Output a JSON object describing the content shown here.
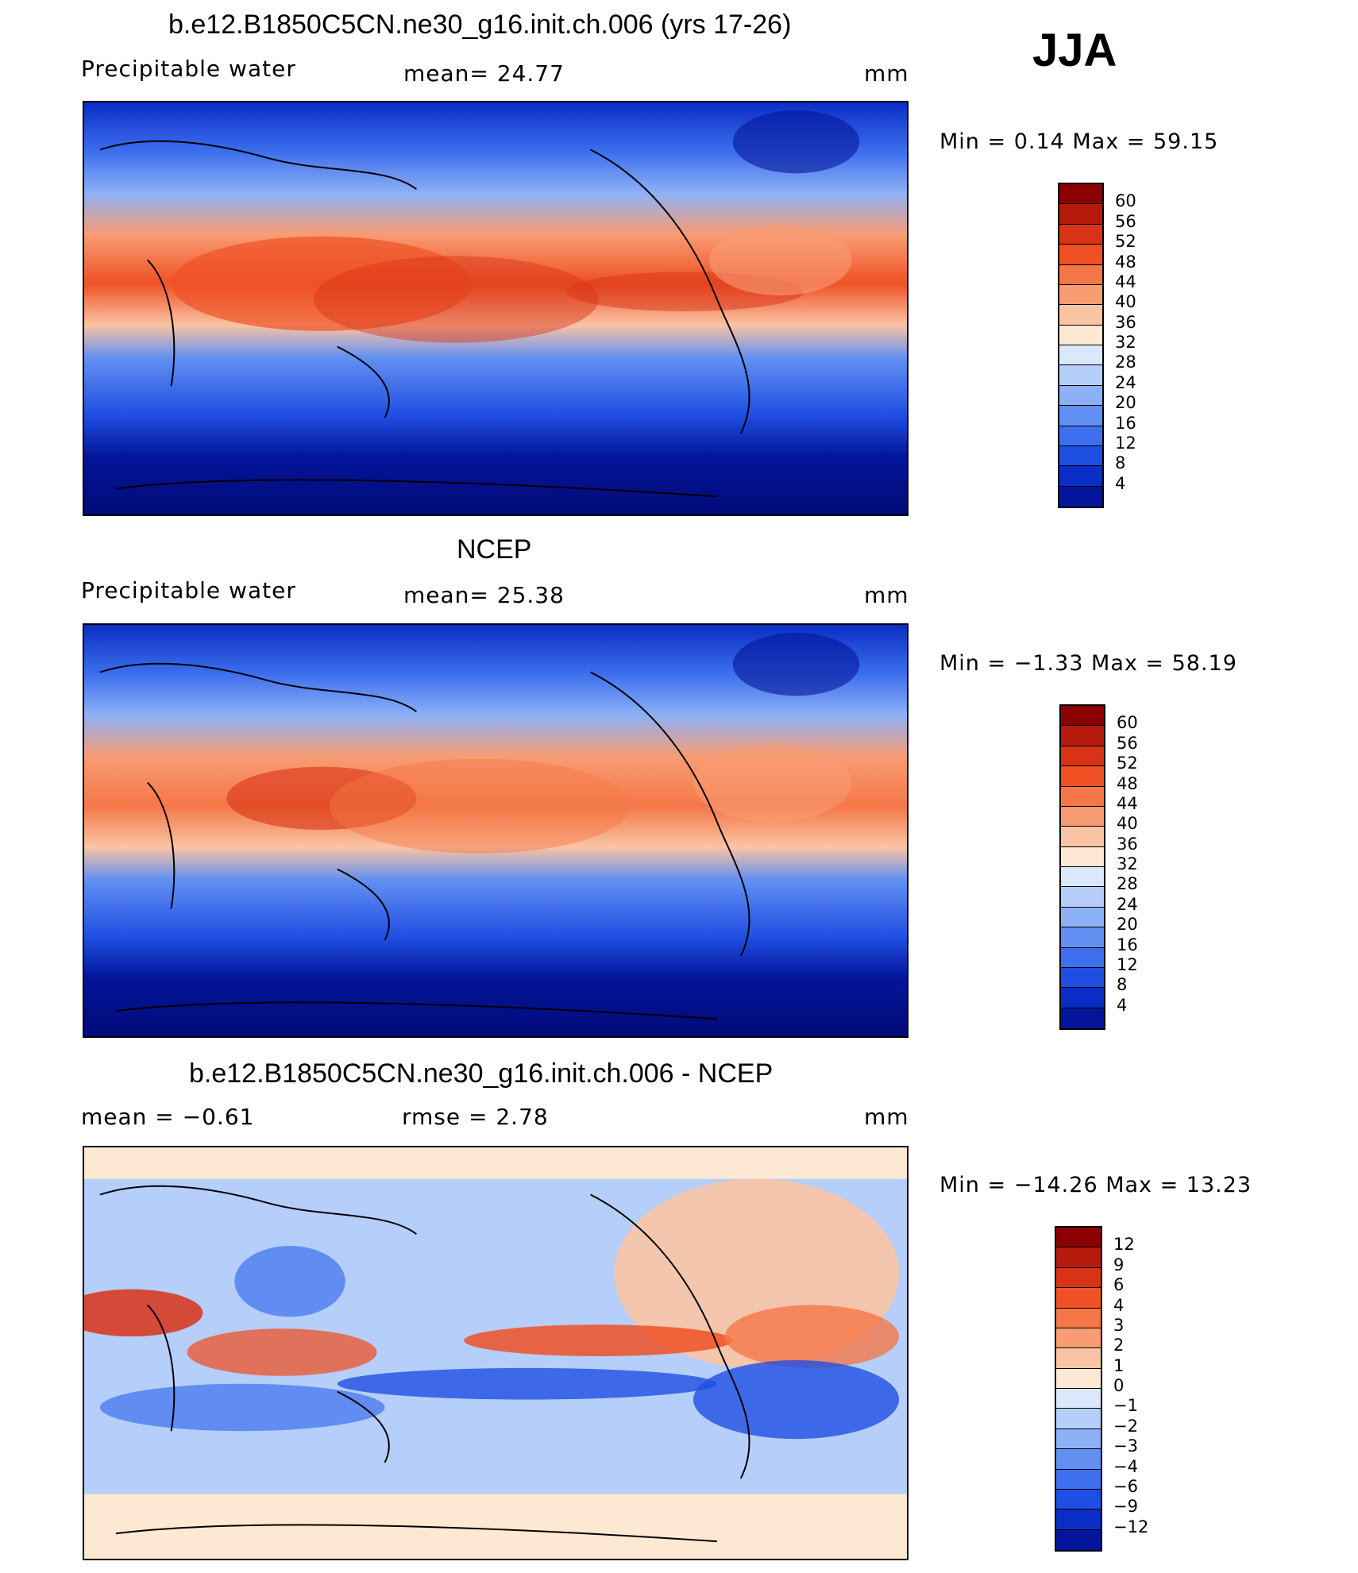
{
  "season": "JJA",
  "panels": [
    {
      "id": "model",
      "title": "b.e12.B1850C5CN.ne30_g16.init.ch.006 (yrs 17-26)",
      "left_label": "Precipitable  water",
      "center_label": "mean=   24.77",
      "units": "mm",
      "minmax": "Min  =     0.14  Max  =    59.15",
      "colorbar": {
        "colors": [
          "#8b0000",
          "#b51a0d",
          "#d83316",
          "#ef5125",
          "#f57748",
          "#f89c74",
          "#fac4a4",
          "#fde8d4",
          "#dbe8fb",
          "#b5cffa",
          "#8db1f6",
          "#6290f2",
          "#3d6fee",
          "#1f4ee2",
          "#0a2ec5",
          "#03159a"
        ],
        "labels": [
          "60",
          "56",
          "52",
          "48",
          "44",
          "40",
          "36",
          "32",
          "28",
          "24",
          "20",
          "16",
          "12",
          "8",
          "4"
        ]
      }
    },
    {
      "id": "obs",
      "title": "NCEP",
      "left_label": "Precipitable  water",
      "center_label": "mean=   25.38",
      "units": "mm",
      "minmax": "Min  =   −1.33  Max  =    58.19",
      "colorbar": {
        "colors": [
          "#8b0000",
          "#b51a0d",
          "#d83316",
          "#ef5125",
          "#f57748",
          "#f89c74",
          "#fac4a4",
          "#fde8d4",
          "#dbe8fb",
          "#b5cffa",
          "#8db1f6",
          "#6290f2",
          "#3d6fee",
          "#1f4ee2",
          "#0a2ec5",
          "#03159a"
        ],
        "labels": [
          "60",
          "56",
          "52",
          "48",
          "44",
          "40",
          "36",
          "32",
          "28",
          "24",
          "20",
          "16",
          "12",
          "8",
          "4"
        ]
      }
    },
    {
      "id": "diff",
      "title": "b.e12.B1850C5CN.ne30_g16.init.ch.006 - NCEP",
      "left_label": "mean  =    −0.61",
      "center_label": "rmse  =     2.78",
      "units": "mm",
      "minmax": "Min  =  −14.26  Max  =    13.23",
      "colorbar": {
        "colors": [
          "#8b0000",
          "#b51a0d",
          "#d83316",
          "#ef5125",
          "#f57748",
          "#f89c74",
          "#fac4a4",
          "#fde8d4",
          "#dbe8fb",
          "#b5cffa",
          "#8db1f6",
          "#6290f2",
          "#3d6fee",
          "#1f4ee2",
          "#0a2ec5",
          "#03159a"
        ],
        "labels": [
          "12",
          "9",
          "6",
          "4",
          "3",
          "2",
          "1",
          "0",
          "−1",
          "−2",
          "−3",
          "−4",
          "−6",
          "−9",
          "−12"
        ]
      }
    }
  ]
}
